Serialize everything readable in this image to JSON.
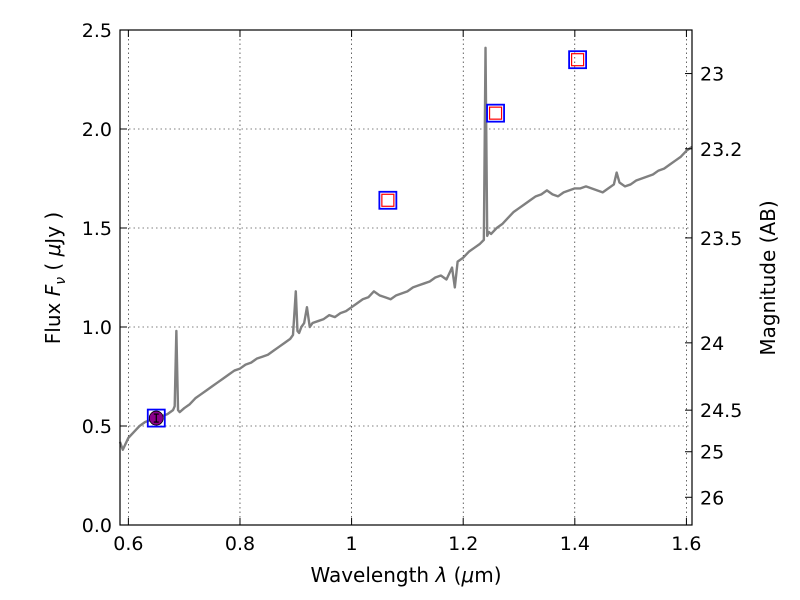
{
  "chart_data": {
    "type": "line",
    "title": "",
    "xlabel": {
      "prefix": "Wavelength  ",
      "lambda": "λ",
      "unit_open": " (",
      "mu": "μ",
      "unit_close": "m)"
    },
    "ylabel": {
      "prefix": "Flux  ",
      "var": "F",
      "sub": "ν",
      "unit_open": "  ( ",
      "mu": "μ",
      "unit_close": "Jy )"
    },
    "ylabel_right": "Magnitude (AB)",
    "xlim": [
      0.585,
      1.61
    ],
    "ylim": [
      0.0,
      2.5
    ],
    "grid": true,
    "x_ticks": [
      {
        "value": 0.6,
        "label": "0.6"
      },
      {
        "value": 0.8,
        "label": "0.8"
      },
      {
        "value": 1.0,
        "label": "1"
      },
      {
        "value": 1.2,
        "label": "1.2"
      },
      {
        "value": 1.4,
        "label": "1.4"
      },
      {
        "value": 1.6,
        "label": "1.6"
      }
    ],
    "y_ticks": [
      {
        "value": 0.0,
        "label": "0.0"
      },
      {
        "value": 0.5,
        "label": "0.5"
      },
      {
        "value": 1.0,
        "label": "1.0"
      },
      {
        "value": 1.5,
        "label": "1.5"
      },
      {
        "value": 2.0,
        "label": "2.0"
      },
      {
        "value": 2.5,
        "label": "2.5"
      }
    ],
    "y_ticks_right": [
      {
        "flux": 2.28,
        "label": "23"
      },
      {
        "flux": 1.9,
        "label": "23.2"
      },
      {
        "flux": 1.45,
        "label": "23.5"
      },
      {
        "flux": 0.92,
        "label": "24"
      },
      {
        "flux": 0.58,
        "label": "24.5"
      },
      {
        "flux": 0.37,
        "label": "25"
      },
      {
        "flux": 0.14,
        "label": "26"
      }
    ],
    "series": [
      {
        "type": "line",
        "color": "#808080",
        "x": [
          0.585,
          0.59,
          0.595,
          0.6,
          0.61,
          0.62,
          0.63,
          0.64,
          0.65,
          0.66,
          0.67,
          0.675,
          0.68,
          0.683,
          0.686,
          0.689,
          0.692,
          0.7,
          0.71,
          0.72,
          0.73,
          0.74,
          0.75,
          0.76,
          0.77,
          0.78,
          0.79,
          0.8,
          0.81,
          0.82,
          0.83,
          0.84,
          0.85,
          0.86,
          0.87,
          0.88,
          0.89,
          0.895,
          0.9,
          0.903,
          0.906,
          0.91,
          0.915,
          0.92,
          0.925,
          0.93,
          0.94,
          0.95,
          0.96,
          0.97,
          0.98,
          0.99,
          1.0,
          1.01,
          1.02,
          1.03,
          1.04,
          1.05,
          1.06,
          1.07,
          1.08,
          1.09,
          1.1,
          1.11,
          1.12,
          1.13,
          1.14,
          1.15,
          1.16,
          1.17,
          1.18,
          1.185,
          1.19,
          1.2,
          1.21,
          1.22,
          1.23,
          1.237,
          1.24,
          1.243,
          1.246,
          1.25,
          1.26,
          1.27,
          1.28,
          1.29,
          1.3,
          1.31,
          1.32,
          1.33,
          1.34,
          1.35,
          1.36,
          1.37,
          1.38,
          1.39,
          1.4,
          1.41,
          1.42,
          1.43,
          1.44,
          1.45,
          1.46,
          1.47,
          1.475,
          1.48,
          1.49,
          1.5,
          1.51,
          1.52,
          1.53,
          1.54,
          1.55,
          1.56,
          1.57,
          1.58,
          1.59,
          1.6,
          1.61
        ],
        "y": [
          0.42,
          0.38,
          0.41,
          0.44,
          0.47,
          0.5,
          0.52,
          0.53,
          0.54,
          0.55,
          0.56,
          0.57,
          0.58,
          0.6,
          0.98,
          0.58,
          0.57,
          0.59,
          0.61,
          0.64,
          0.66,
          0.68,
          0.7,
          0.72,
          0.74,
          0.76,
          0.78,
          0.79,
          0.81,
          0.82,
          0.84,
          0.85,
          0.86,
          0.88,
          0.9,
          0.92,
          0.94,
          0.96,
          1.18,
          0.98,
          0.97,
          1.0,
          1.02,
          1.1,
          1.0,
          1.02,
          1.03,
          1.04,
          1.06,
          1.05,
          1.07,
          1.08,
          1.1,
          1.12,
          1.14,
          1.15,
          1.18,
          1.16,
          1.15,
          1.14,
          1.16,
          1.17,
          1.18,
          1.2,
          1.21,
          1.22,
          1.23,
          1.25,
          1.26,
          1.24,
          1.3,
          1.2,
          1.33,
          1.35,
          1.38,
          1.4,
          1.42,
          1.44,
          2.41,
          1.46,
          1.48,
          1.47,
          1.5,
          1.52,
          1.55,
          1.58,
          1.6,
          1.62,
          1.64,
          1.66,
          1.67,
          1.69,
          1.67,
          1.66,
          1.68,
          1.69,
          1.7,
          1.7,
          1.71,
          1.7,
          1.69,
          1.68,
          1.7,
          1.72,
          1.78,
          1.73,
          1.71,
          1.72,
          1.74,
          1.75,
          1.76,
          1.77,
          1.79,
          1.8,
          1.82,
          1.84,
          1.86,
          1.89,
          1.91
        ]
      }
    ],
    "markers": [
      {
        "x": 0.65,
        "y": 0.54,
        "style": "filled-circle",
        "fill": "#8B008B",
        "box_color": "#0000FF"
      },
      {
        "x": 1.065,
        "y": 1.64,
        "style": "open-square",
        "fill": "#FF0000",
        "box_color": "#0000FF"
      },
      {
        "x": 1.258,
        "y": 2.08,
        "style": "open-square",
        "fill": "#FF0000",
        "box_color": "#0000FF"
      },
      {
        "x": 1.405,
        "y": 2.35,
        "style": "open-square",
        "fill": "#FF0000",
        "box_color": "#0000FF"
      }
    ]
  }
}
